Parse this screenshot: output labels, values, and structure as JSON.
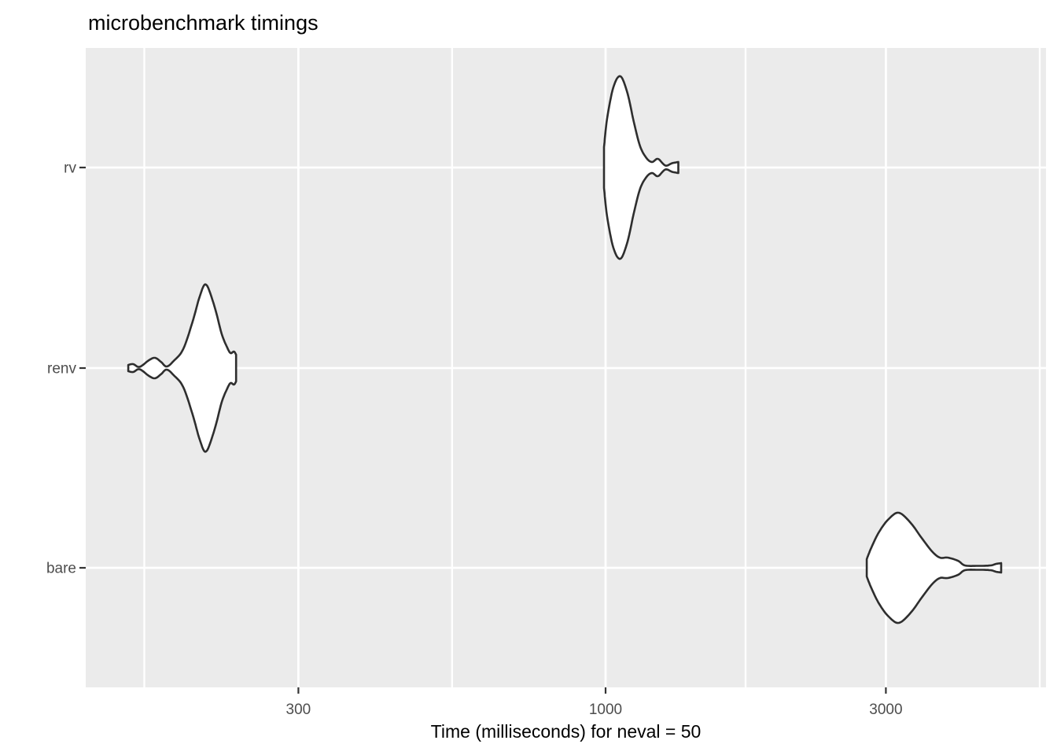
{
  "chart_data": {
    "type": "violin",
    "orientation": "horizontal",
    "title": "microbenchmark timings",
    "xlabel": "Time (milliseconds) for neval = 50",
    "ylabel": "",
    "x_scale": "log10",
    "x_tick_labels": [
      "300",
      "1000",
      "3000"
    ],
    "x_tick_values_ms": [
      300,
      1000,
      3000
    ],
    "x_minor_gridline_values_ms": [
      164,
      548,
      1731,
      5483
    ],
    "x_range_ms": [
      130,
      5620
    ],
    "grid": true,
    "legend": false,
    "categories": [
      "rv",
      "renv",
      "bare"
    ],
    "series": [
      {
        "name": "rv",
        "summary_ms": {
          "min": 994,
          "peak_density": 1060,
          "max": 1330
        },
        "density_profile_ms_halfwidth": [
          [
            994,
            26
          ],
          [
            1006,
            62
          ],
          [
            1031,
            102
          ],
          [
            1060,
            116
          ],
          [
            1090,
            94
          ],
          [
            1117,
            58
          ],
          [
            1145,
            27
          ],
          [
            1174,
            12
          ],
          [
            1200,
            7
          ],
          [
            1228,
            11
          ],
          [
            1264,
            2.5
          ],
          [
            1298,
            5.5
          ],
          [
            1330,
            7
          ]
        ]
      },
      {
        "name": "renv",
        "summary_ms": {
          "min": 154,
          "peak_density": 209,
          "max": 235
        },
        "density_profile_ms_halfwidth": [
          [
            154,
            4
          ],
          [
            157,
            5
          ],
          [
            161,
            1.5
          ],
          [
            167,
            10
          ],
          [
            171,
            13
          ],
          [
            175,
            8
          ],
          [
            179,
            2
          ],
          [
            184,
            9
          ],
          [
            191,
            24
          ],
          [
            198,
            58
          ],
          [
            204,
            92
          ],
          [
            209,
            106
          ],
          [
            216,
            78
          ],
          [
            222,
            44
          ],
          [
            227,
            26
          ],
          [
            230,
            19
          ],
          [
            233,
            21
          ],
          [
            235,
            17
          ]
        ]
      },
      {
        "name": "bare",
        "summary_ms": {
          "min": 2783,
          "peak_density": 3157,
          "max": 4714
        },
        "density_profile_ms_halfwidth": [
          [
            2783,
            11
          ],
          [
            2835,
            26
          ],
          [
            2923,
            46
          ],
          [
            3033,
            62
          ],
          [
            3157,
            70
          ],
          [
            3307,
            57
          ],
          [
            3452,
            38
          ],
          [
            3594,
            21
          ],
          [
            3707,
            13
          ],
          [
            3822,
            13
          ],
          [
            3979,
            9
          ],
          [
            4090,
            3
          ],
          [
            4300,
            2.5
          ],
          [
            4520,
            3
          ],
          [
            4620,
            5
          ],
          [
            4714,
            6
          ]
        ]
      }
    ],
    "style": {
      "panel_background": "#EBEBEB",
      "gridline_color": "#FFFFFF",
      "violin_stroke": "#2E2E2E",
      "violin_fill": "#FFFFFF",
      "tick_label_color": "#4D4D4D",
      "axis_tick_color": "#333333",
      "title_color": "#000000"
    }
  }
}
